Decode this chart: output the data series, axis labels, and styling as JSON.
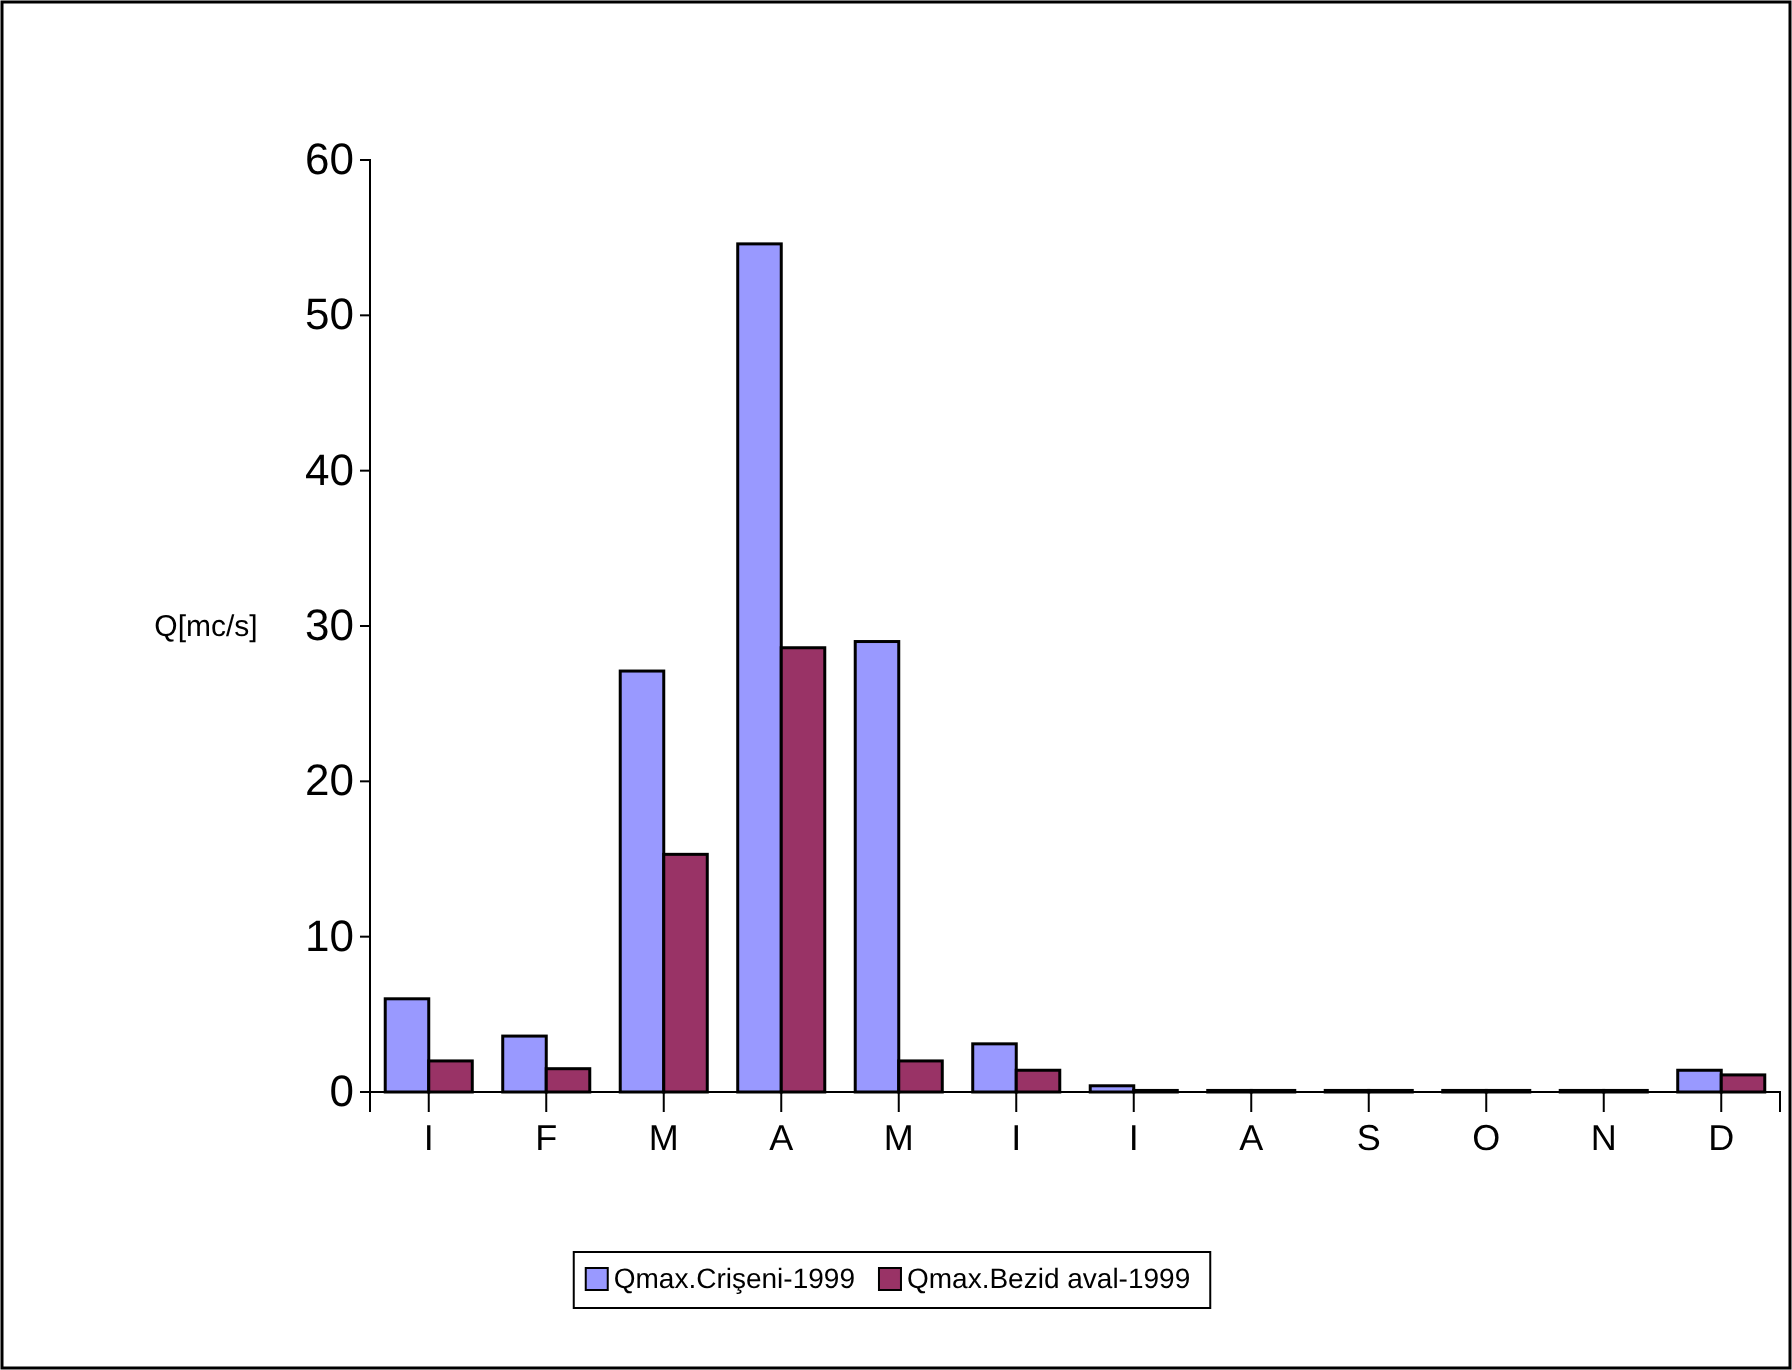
{
  "chart_data": {
    "type": "bar",
    "ylabel": "Q[mc/s]",
    "categories": [
      "I",
      "F",
      "M",
      "A",
      "M",
      "I",
      "I",
      "A",
      "S",
      "O",
      "N",
      "D"
    ],
    "series": [
      {
        "name": "Qmax.Crişeni-1999",
        "color": "#9999ff",
        "values": [
          6.0,
          3.6,
          27.1,
          54.6,
          29.0,
          3.1,
          0.4,
          0.1,
          0.1,
          0.1,
          0.1,
          1.4
        ]
      },
      {
        "name": "Qmax.Bezid aval-1999",
        "color": "#993366",
        "values": [
          2.0,
          1.5,
          15.3,
          28.6,
          2.0,
          1.4,
          0.1,
          0.1,
          0.1,
          0.1,
          0.1,
          1.1
        ]
      }
    ],
    "ylim": [
      0,
      60
    ],
    "yticks": [
      0,
      10,
      20,
      30,
      40,
      50,
      60
    ],
    "grid": false,
    "legend": "bottom"
  }
}
